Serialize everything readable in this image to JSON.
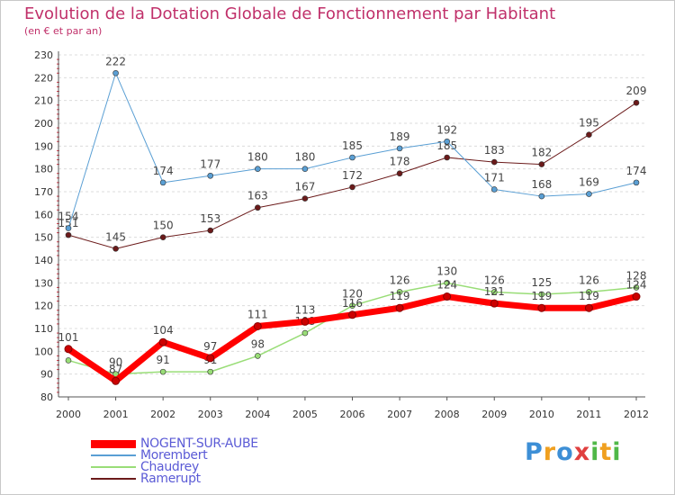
{
  "header": {
    "title": "Evolution de la Dotation Globale de Fonctionnement par Habitant",
    "subtitle": "(en € et par an)"
  },
  "logo": {
    "text": "Proxiti",
    "letters": [
      {
        "char": "P",
        "color": "#3d8fd6"
      },
      {
        "char": "r",
        "color": "#f0a020"
      },
      {
        "char": "o",
        "color": "#3d8fd6"
      },
      {
        "char": "x",
        "color": "#e04040"
      },
      {
        "char": "i",
        "color": "#50b848"
      },
      {
        "char": "t",
        "color": "#f0a020"
      },
      {
        "char": "i",
        "color": "#50b848"
      }
    ]
  },
  "chart_data": {
    "type": "line",
    "title": "Evolution de la Dotation Globale de Fonctionnement par Habitant",
    "subtitle": "(en € et par an)",
    "xlabel": "",
    "ylabel": "",
    "x": [
      "2000",
      "2001",
      "2002",
      "2003",
      "2004",
      "2005",
      "2006",
      "2007",
      "2008",
      "2009",
      "2010",
      "2011",
      "2012"
    ],
    "ylim": [
      80,
      230
    ],
    "yticks": [
      80,
      90,
      100,
      110,
      120,
      130,
      140,
      150,
      160,
      170,
      180,
      190,
      200,
      210,
      220,
      230
    ],
    "grid": "horizontal dashed",
    "legend_position": "bottom-left",
    "series": [
      {
        "name": "Ramerupt",
        "color": "#6b1a1a",
        "line_width": 1,
        "values": [
          151,
          145,
          150,
          153,
          163,
          167,
          172,
          178,
          185,
          183,
          182,
          195,
          209
        ],
        "labels": [
          "151",
          "145",
          "150",
          "153",
          "163",
          "167",
          "172",
          "178",
          "185",
          "183",
          "182",
          "195",
          "209"
        ]
      },
      {
        "name": "Morembert",
        "color": "#5a9fd4",
        "line_width": 1,
        "values": [
          154,
          222,
          174,
          177,
          180,
          180,
          185,
          189,
          192,
          171,
          168,
          169,
          174
        ],
        "labels": [
          "154",
          "222",
          "174",
          "177",
          "180",
          "180",
          "185",
          "189",
          "192",
          "171",
          "168",
          "169",
          "174"
        ]
      },
      {
        "name": "Chaudrey",
        "color": "#99dd77",
        "line_width": 1.5,
        "values": [
          96,
          90,
          91,
          91,
          98,
          108,
          120,
          126,
          130,
          126,
          125,
          126,
          128
        ],
        "labels": [
          "",
          "90",
          "91",
          "91",
          "98",
          "108",
          "120",
          "126",
          "130",
          "126",
          "125",
          "126",
          "128"
        ]
      },
      {
        "name": "NOGENT-SUR-AUBE",
        "color": "#ff0000",
        "line_width": 7,
        "values": [
          101,
          87,
          104,
          97,
          111,
          113,
          116,
          119,
          124,
          121,
          119,
          119,
          124
        ],
        "labels": [
          "101",
          "87",
          "104",
          "97",
          "111",
          "113",
          "116",
          "119",
          "124",
          "121",
          "119",
          "119",
          "124"
        ]
      }
    ],
    "legend_order": [
      "NOGENT-SUR-AUBE",
      "Morembert",
      "Chaudrey",
      "Ramerupt"
    ]
  }
}
